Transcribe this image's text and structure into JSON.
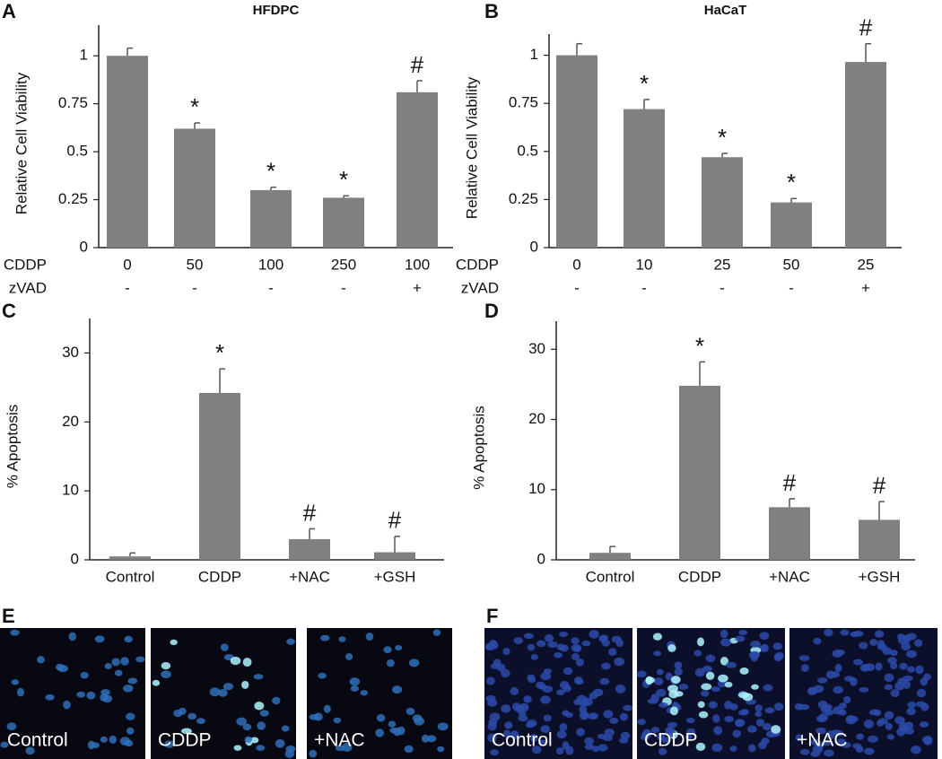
{
  "chart_data": [
    {
      "type": "bar",
      "letter": "A",
      "title": "HFDPC",
      "y_label": "Relative Cell Viability",
      "row_labels": [
        "CDDP",
        "zVAD"
      ],
      "categories": [
        "0",
        "50",
        "100",
        "250",
        "100"
      ],
      "categories2": [
        "-",
        "-",
        "-",
        "-",
        "+"
      ],
      "values": [
        1.0,
        0.62,
        0.3,
        0.26,
        0.81
      ],
      "errors": [
        0.04,
        0.03,
        0.015,
        0.01,
        0.06
      ],
      "annotations": [
        null,
        "*",
        "*",
        "*",
        "#"
      ],
      "color": "#808080",
      "ylim": [
        0,
        1.16
      ],
      "yticks": [
        0,
        0.25,
        0.5,
        0.75,
        1
      ]
    },
    {
      "type": "bar",
      "letter": "B",
      "title": "HaCaT",
      "y_label": "Relative Cell Viability",
      "row_labels": [
        "CDDP",
        "zVAD"
      ],
      "categories": [
        "0",
        "10",
        "25",
        "50",
        "25"
      ],
      "categories2": [
        "-",
        "-",
        "-",
        "-",
        "+"
      ],
      "values": [
        1.0,
        0.72,
        0.47,
        0.235,
        0.965
      ],
      "errors": [
        0.06,
        0.05,
        0.02,
        0.02,
        0.095
      ],
      "annotations": [
        null,
        "*",
        "*",
        "*",
        "#"
      ],
      "color": "#808080",
      "ylim": [
        0,
        1.11
      ],
      "yticks": [
        0,
        0.25,
        0.5,
        0.75,
        1
      ]
    },
    {
      "type": "bar",
      "letter": "C",
      "y_label": "% Apoptosis",
      "categories": [
        "Control",
        "CDDP",
        "+NAC",
        "+GSH"
      ],
      "values": [
        0.5,
        24.2,
        3.0,
        1.1
      ],
      "errors": [
        0.5,
        3.5,
        1.5,
        2.3
      ],
      "annotations": [
        null,
        "*",
        "#",
        "#"
      ],
      "color": "#808080",
      "ylim": [
        0,
        35
      ],
      "yticks": [
        0,
        10,
        20,
        30
      ]
    },
    {
      "type": "bar",
      "letter": "D",
      "y_label": "% Apoptosis",
      "categories": [
        "Control",
        "CDDP",
        "+NAC",
        "+GSH"
      ],
      "values": [
        1.0,
        24.8,
        7.5,
        5.7
      ],
      "errors": [
        0.9,
        3.4,
        1.2,
        2.6
      ],
      "annotations": [
        null,
        "*",
        "#",
        "#"
      ],
      "color": "#808080",
      "ylim": [
        0,
        34
      ],
      "yticks": [
        0,
        10,
        20,
        30
      ]
    }
  ],
  "image_panels": [
    {
      "letter": "E",
      "labels": [
        "Control",
        "CDDP",
        "+NAC"
      ]
    },
    {
      "letter": "F",
      "labels": [
        "Control",
        "CDDP",
        "+NAC"
      ]
    }
  ]
}
